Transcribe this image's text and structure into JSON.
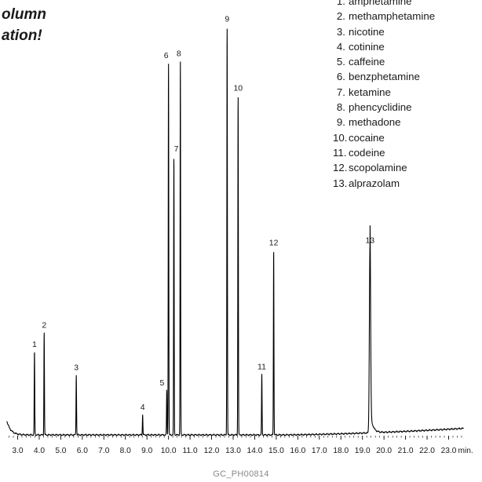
{
  "title_fragment": {
    "line1": "olumn",
    "line2": "ation!"
  },
  "footer_code": "GC_PH00814",
  "chart_data": {
    "type": "line",
    "title": "",
    "xlabel": "min",
    "ylabel": "",
    "xlim": [
      2.5,
      23.7
    ],
    "ylim": [
      0,
      100
    ],
    "x_ticks": [
      "3.0",
      "4.0",
      "5.0",
      "6.0",
      "7.0",
      "8.0",
      "9.0",
      "10.0",
      "11.0",
      "12.0",
      "13.0",
      "14.0",
      "15.0",
      "16.0",
      "17.0",
      "18.0",
      "19.0",
      "20.0",
      "21.0",
      "22.0",
      "23.0"
    ],
    "x_tick_values": [
      3,
      4,
      5,
      6,
      7,
      8,
      9,
      10,
      11,
      12,
      13,
      14,
      15,
      16,
      17,
      18,
      19,
      20,
      21,
      22,
      23
    ],
    "x_unit_label": "min.",
    "line_color": "#000000",
    "peaks": [
      {
        "label": "1",
        "rt": 3.78,
        "height": 20.5
      },
      {
        "label": "2",
        "rt": 4.23,
        "height": 25.2
      },
      {
        "label": "3",
        "rt": 5.72,
        "height": 14.8
      },
      {
        "label": "4",
        "rt": 8.8,
        "height": 5.0
      },
      {
        "label": "5",
        "rt": 9.92,
        "height": 11.0
      },
      {
        "label": "6",
        "rt": 10.0,
        "height": 91.5
      },
      {
        "label": "7",
        "rt": 10.25,
        "height": 68.5
      },
      {
        "label": "8",
        "rt": 10.55,
        "height": 92.0
      },
      {
        "label": "9",
        "rt": 12.72,
        "height": 100.5
      },
      {
        "label": "10",
        "rt": 13.23,
        "height": 83.5
      },
      {
        "label": "11",
        "rt": 14.33,
        "height": 15.0
      },
      {
        "label": "12",
        "rt": 14.88,
        "height": 45.5
      },
      {
        "label": "13",
        "rt": 19.35,
        "height": 46.0
      }
    ]
  },
  "legend": {
    "items": [
      {
        "num": "1.",
        "name": "amphetamine"
      },
      {
        "num": "2.",
        "name": "methamphetamine"
      },
      {
        "num": "3.",
        "name": "nicotine"
      },
      {
        "num": "4.",
        "name": "cotinine"
      },
      {
        "num": "5.",
        "name": "caffeine"
      },
      {
        "num": "6.",
        "name": "benzphetamine"
      },
      {
        "num": "7.",
        "name": "ketamine"
      },
      {
        "num": "8.",
        "name": "phencyclidine"
      },
      {
        "num": "9.",
        "name": "methadone"
      },
      {
        "num": "10.",
        "name": "cocaine"
      },
      {
        "num": "11.",
        "name": "codeine"
      },
      {
        "num": "12.",
        "name": "scopolamine"
      },
      {
        "num": "13.",
        "name": "alprazolam"
      }
    ]
  }
}
